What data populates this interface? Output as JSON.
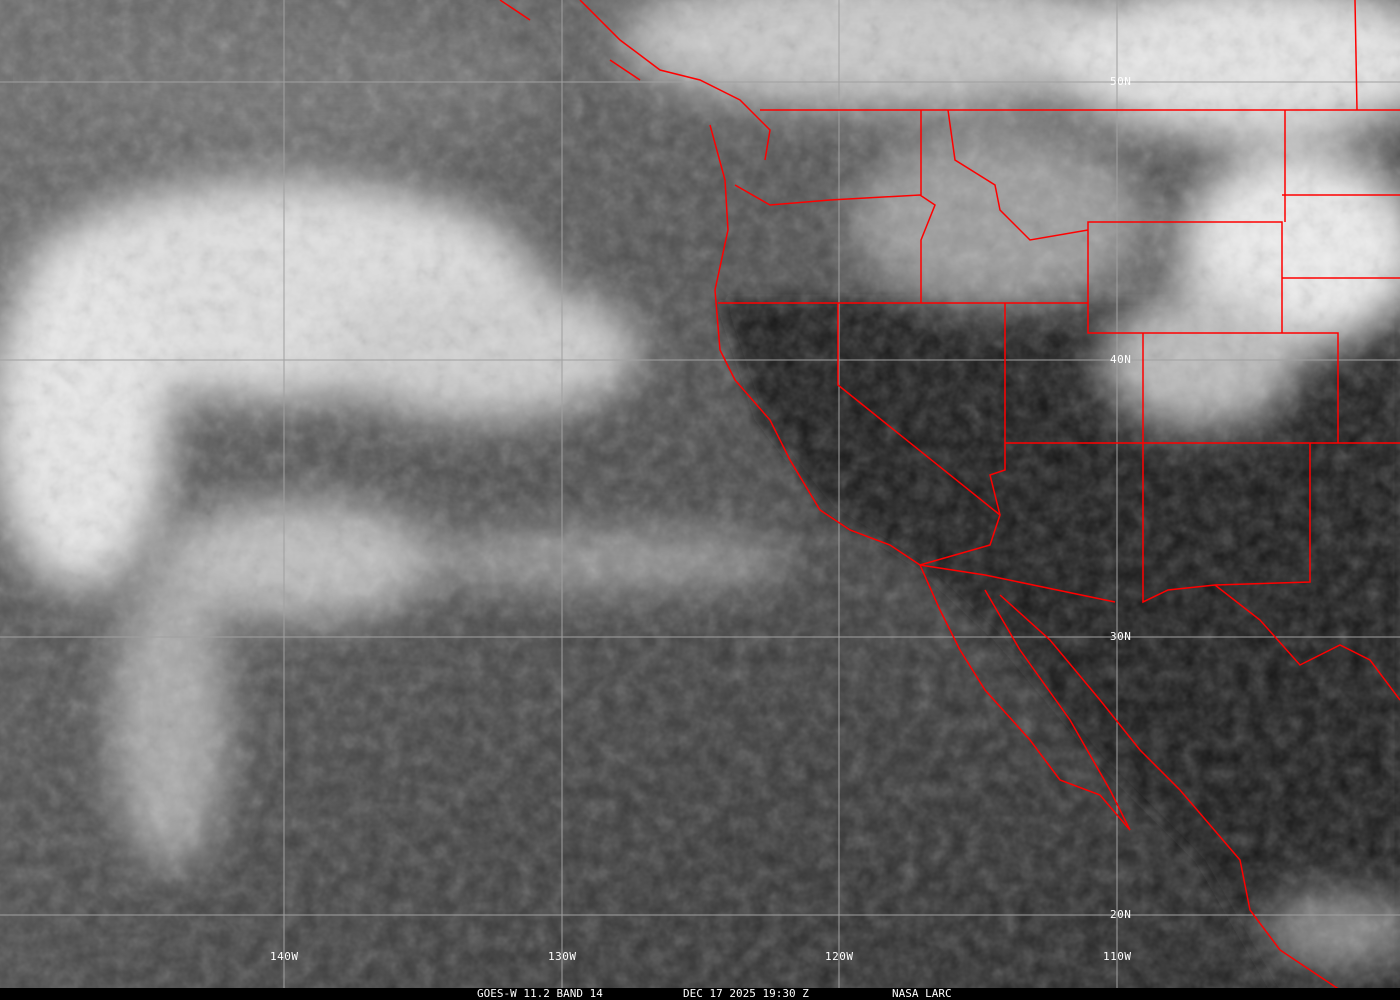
{
  "caption": {
    "satellite_band": "GOES-W 11.2 BAND 14",
    "datetime": "DEC 17 2025 19:30 Z",
    "credit": "NASA LARC"
  },
  "grid": {
    "latitudes": [
      "50N",
      "40N",
      "30N",
      "20N"
    ],
    "longitudes": [
      "140W",
      "130W",
      "120W",
      "110W"
    ]
  },
  "colors": {
    "borders": "#ff0000",
    "grid": "#a0a0a0"
  }
}
